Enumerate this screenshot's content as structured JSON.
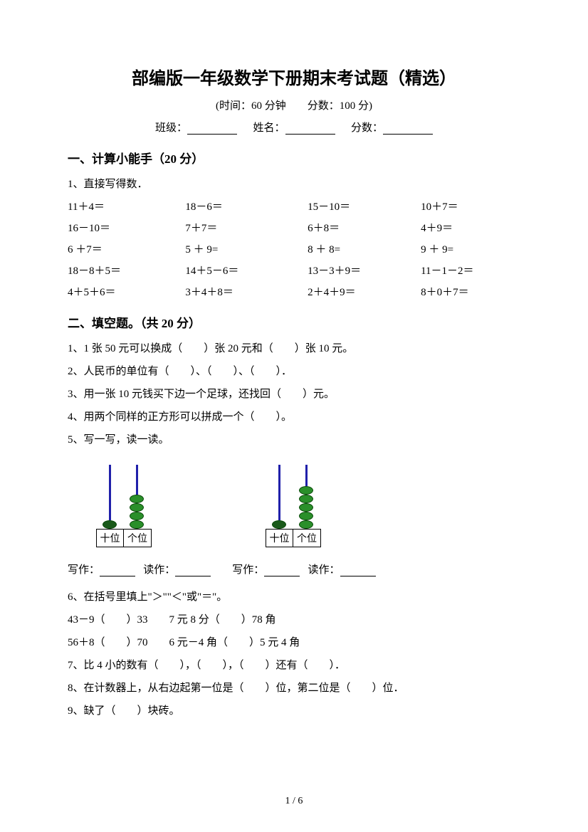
{
  "title": "部编版一年级数学下册期末考试题（精选）",
  "subtitle": "(时间：60 分钟　　分数：100 分)",
  "info": {
    "class_label": "班级：",
    "name_label": "姓名：",
    "score_label": "分数："
  },
  "section1": {
    "header": "一、计算小能手（20 分）",
    "q1_label": "1、直接写得数．",
    "rows": [
      [
        "11＋4＝",
        "18－6＝",
        "15－10＝",
        "10＋7＝"
      ],
      [
        "16－10＝",
        "7＋7＝",
        "6＋8＝",
        "4＋9＝"
      ],
      [
        "6 ＋7＝",
        "5 ＋ 9=",
        "8 ＋ 8=",
        "9 ＋ 9="
      ],
      [
        "18－8＋5＝",
        "14＋5－6＝",
        "13－3＋9＝",
        "11－1－2＝"
      ],
      [
        "4＋5＋6＝",
        "3＋4＋8＝",
        "2＋4＋9＝",
        "8＋0＋7＝"
      ]
    ]
  },
  "section2": {
    "header": "二、填空题。（共 20 分）",
    "items": [
      "1、1 张 50 元可以换成（　　）张 20 元和（　　）张 10 元。",
      "2、人民币的单位有（　　）、（　　）、（　　）．",
      "3、用一张 10 元钱买下边一个足球，还找回（　　）元。",
      "4、用两个同样的正方形可以拼成一个（　　）。",
      "5、写一写，读一读。"
    ],
    "counter1": {
      "tens_beads": 1,
      "ones_beads": 4,
      "ten_label": "十位",
      "one_label": "个位"
    },
    "counter2": {
      "tens_beads": 1,
      "ones_beads": 5,
      "ten_label": "十位",
      "one_label": "个位"
    },
    "write_label": "写作：",
    "read_label": "读作：",
    "items2": [
      "6、在括号里填上\"＞\"\"＜\"或\"＝\"。",
      "43－9（　　）33　　7 元 8 分（　　）78 角",
      "56＋8（　　）70　　6 元－4 角（　　）5 元 4 角",
      "7、比 4 小的数有（　　），（　　），（　　）还有（　　）．",
      "8、在计数器上，从右边起第一位是（　　）位，第二位是（　　）位．",
      "9、缺了（　　）块砖。"
    ]
  },
  "page_number": "1 / 6",
  "colors": {
    "bead": "#2a8f2a",
    "bead_border": "#0a4a0a",
    "rod": "#2020aa",
    "text": "#000000",
    "bg": "#ffffff"
  }
}
